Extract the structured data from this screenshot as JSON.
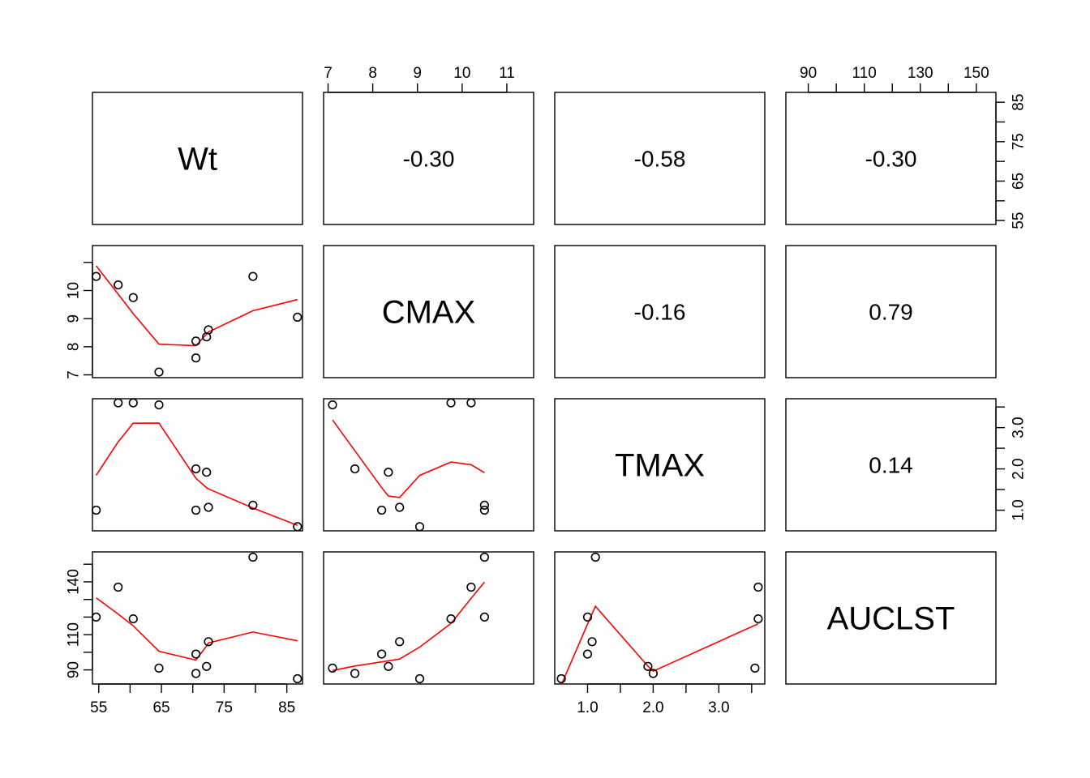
{
  "chart_data": {
    "type": "scatter",
    "variables": [
      "Wt",
      "CMAX",
      "TMAX",
      "AUCLST"
    ],
    "observations": [
      {
        "Wt": 54.6,
        "CMAX": 10.5,
        "TMAX": 1.0,
        "AUCLST": 120
      },
      {
        "Wt": 58.1,
        "CMAX": 10.2,
        "TMAX": 3.6,
        "AUCLST": 137
      },
      {
        "Wt": 60.5,
        "CMAX": 9.75,
        "TMAX": 3.6,
        "AUCLST": 119
      },
      {
        "Wt": 64.6,
        "CMAX": 7.1,
        "TMAX": 3.55,
        "AUCLST": 91
      },
      {
        "Wt": 70.5,
        "CMAX": 7.6,
        "TMAX": 2.0,
        "AUCLST": 88
      },
      {
        "Wt": 70.5,
        "CMAX": 8.2,
        "TMAX": 1.0,
        "AUCLST": 99
      },
      {
        "Wt": 72.2,
        "CMAX": 8.35,
        "TMAX": 1.92,
        "AUCLST": 92
      },
      {
        "Wt": 72.5,
        "CMAX": 8.6,
        "TMAX": 1.07,
        "AUCLST": 106
      },
      {
        "Wt": 79.6,
        "CMAX": 10.5,
        "TMAX": 1.12,
        "AUCLST": 154
      },
      {
        "Wt": 86.7,
        "CMAX": 9.05,
        "TMAX": 0.6,
        "AUCLST": 85
      }
    ],
    "correlations": [
      {
        "pair": [
          "Wt",
          "CMAX"
        ],
        "label": "-0.30"
      },
      {
        "pair": [
          "Wt",
          "TMAX"
        ],
        "label": "-0.58"
      },
      {
        "pair": [
          "Wt",
          "AUCLST"
        ],
        "label": "-0.30"
      },
      {
        "pair": [
          "CMAX",
          "TMAX"
        ],
        "label": "-0.16"
      },
      {
        "pair": [
          "CMAX",
          "AUCLST"
        ],
        "label": "0.79"
      },
      {
        "pair": [
          "TMAX",
          "AUCLST"
        ],
        "label": "0.14"
      }
    ],
    "axes": {
      "Wt": {
        "range": [
          54,
          87.5
        ],
        "ticks": [
          55,
          60,
          65,
          70,
          75,
          80,
          85
        ],
        "bottom_labels": [
          "55",
          "",
          "65",
          "",
          "75",
          "",
          "85"
        ],
        "right_labels": [
          "55",
          "",
          "65",
          "",
          "75",
          "",
          "85"
        ]
      },
      "CMAX": {
        "range": [
          6.9,
          11.6
        ],
        "ticks": [
          7,
          8,
          9,
          10,
          11
        ],
        "top_labels": [
          "7",
          "8",
          "9",
          "10",
          "11"
        ],
        "left_labels": [
          "7",
          "8",
          "9",
          "10",
          ""
        ]
      },
      "TMAX": {
        "range": [
          0.5,
          3.7
        ],
        "ticks": [
          1.0,
          1.5,
          2.0,
          2.5,
          3.0,
          3.5
        ],
        "bottom_labels": [
          "1.0",
          "",
          "2.0",
          "",
          "3.0",
          ""
        ],
        "right_labels": [
          "1.0",
          "",
          "2.0",
          "",
          "3.0",
          ""
        ]
      },
      "AUCLST": {
        "range": [
          82,
          157
        ],
        "ticks": [
          90,
          100,
          110,
          120,
          130,
          140,
          150
        ],
        "top_labels": [
          "90",
          "",
          "110",
          "",
          "130",
          "",
          "150"
        ],
        "left_labels": [
          "90",
          "",
          "110",
          "",
          "",
          "140",
          ""
        ]
      }
    },
    "smoother_color": "#ff0000",
    "point_style": "open-circle"
  }
}
